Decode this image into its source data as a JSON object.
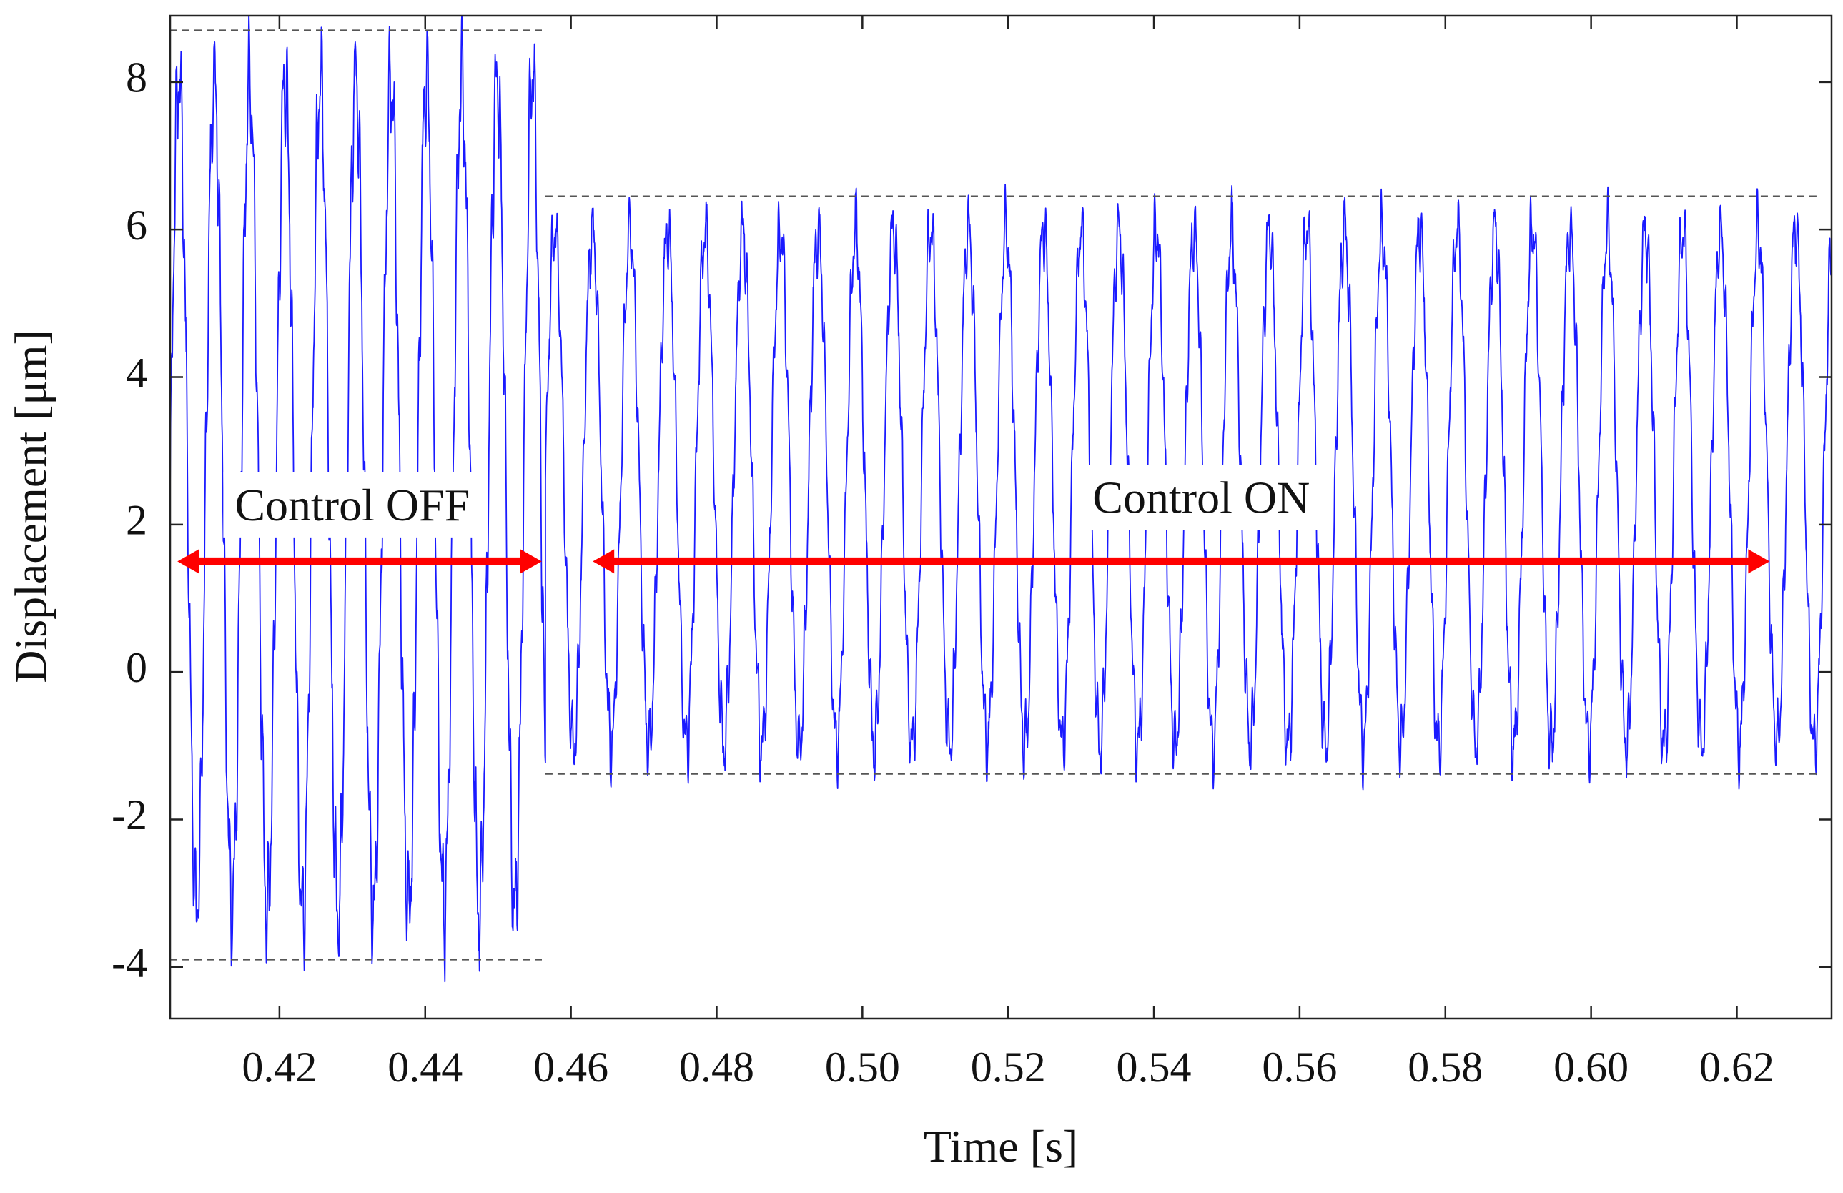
{
  "chart_data": {
    "type": "line",
    "title": "",
    "xlabel": "Time [s]",
    "ylabel": "Displacement [μm]",
    "xlim": [
      0.405,
      0.633
    ],
    "ylim": [
      -4.7,
      8.9
    ],
    "grid": false,
    "legend": "none",
    "x_ticks": [
      0.42,
      0.44,
      0.46,
      0.48,
      0.5,
      0.52,
      0.54,
      0.56,
      0.58,
      0.6,
      0.62
    ],
    "x_tick_labels": [
      "0.42",
      "0.44",
      "0.46",
      "0.48",
      "0.50",
      "0.52",
      "0.54",
      "0.56",
      "0.58",
      "0.60",
      "0.62"
    ],
    "y_ticks": [
      -4,
      -2,
      0,
      2,
      4,
      6,
      8
    ],
    "y_tick_labels": [
      "-4",
      "-2",
      "0",
      "2",
      "4",
      "6",
      "8"
    ],
    "series": [
      {
        "color": "#1a1aff",
        "segments": [
          {
            "x_start": 0.405,
            "x_end": 0.4565,
            "period": 0.00485,
            "max": 8.7,
            "min": -3.9
          },
          {
            "x_start": 0.4565,
            "x_end": 0.633,
            "period": 0.00516,
            "max": 6.4,
            "min": -1.4
          }
        ]
      }
    ],
    "reference_lines": [
      {
        "y": 8.7,
        "x_start": 0.405,
        "x_end": 0.4565,
        "style": "dashed",
        "color": "#555555"
      },
      {
        "y": -3.9,
        "x_start": 0.405,
        "x_end": 0.4565,
        "style": "dashed",
        "color": "#555555"
      },
      {
        "y": 6.45,
        "x_start": 0.4565,
        "x_end": 0.631,
        "style": "dashed",
        "color": "#555555"
      },
      {
        "y": -1.38,
        "x_start": 0.4565,
        "x_end": 0.631,
        "style": "dashed",
        "color": "#555555"
      }
    ],
    "annotations": [
      {
        "text": "Control OFF",
        "x": 0.43,
        "y": 2.2,
        "arrow_x_start": 0.406,
        "arrow_x_end": 0.456,
        "arrow_y": 1.5,
        "color": "#ff0000"
      },
      {
        "text": "Control ON",
        "x": 0.5465,
        "y": 2.3,
        "arrow_x_start": 0.463,
        "arrow_x_end": 0.6245,
        "arrow_y": 1.5,
        "color": "#ff0000"
      }
    ]
  }
}
